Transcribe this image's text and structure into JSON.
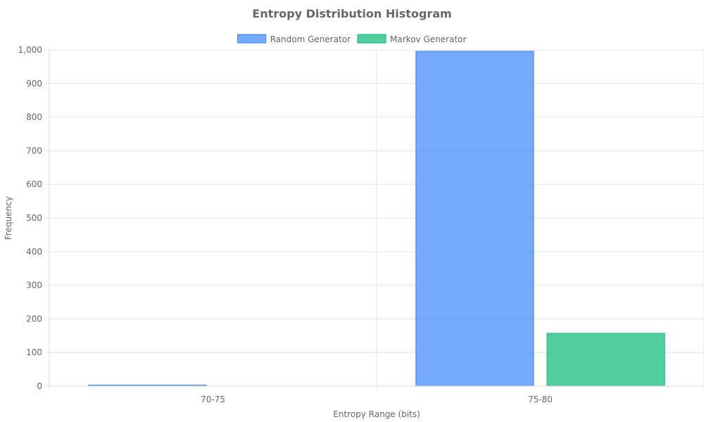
{
  "chart_data": {
    "type": "bar",
    "title": "Entropy Distribution Histogram",
    "xlabel": "Entropy Range (bits)",
    "ylabel": "Frequency",
    "categories": [
      "70-75",
      "75-80"
    ],
    "series": [
      {
        "name": "Random Generator",
        "values": [
          3,
          996
        ],
        "color": "#5b9bf8",
        "border": "#3b82f6"
      },
      {
        "name": "Markov Generator",
        "values": [
          0,
          157
        ],
        "color": "#34c48b",
        "border": "#10b981"
      }
    ],
    "ylim": [
      0,
      1000
    ],
    "yticks": [
      0,
      100,
      200,
      300,
      400,
      500,
      600,
      700,
      800,
      900,
      1000
    ],
    "ytick_labels": [
      "0",
      "100",
      "200",
      "300",
      "400",
      "500",
      "600",
      "700",
      "800",
      "900",
      "1,000"
    ],
    "grid": true,
    "legend_position": "top"
  }
}
